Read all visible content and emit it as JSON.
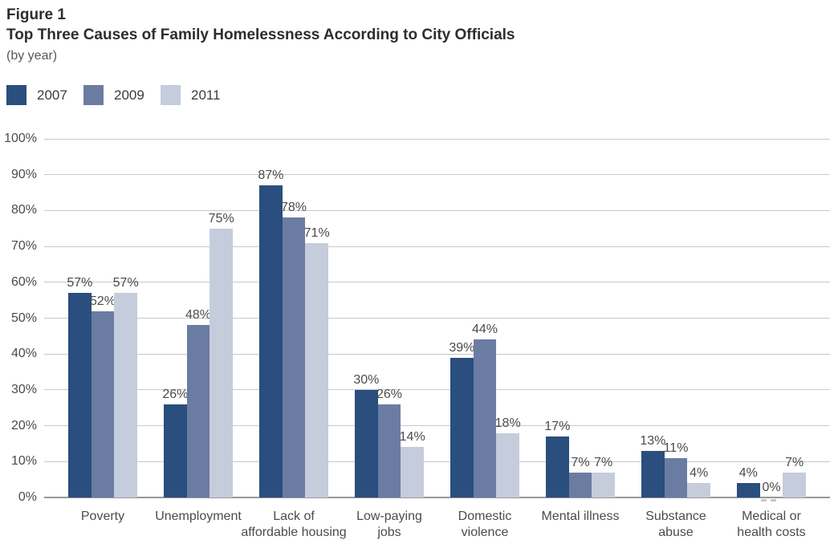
{
  "header": {
    "figure_label": "Figure 1",
    "title": "Top Three Causes of Family Homelessness According to City Officials",
    "subtitle": "(by year)"
  },
  "legend": {
    "items": [
      {
        "label": "2007",
        "color": "#2a4e7d"
      },
      {
        "label": "2009",
        "color": "#6b7ca3"
      },
      {
        "label": "2011",
        "color": "#c5ccdb"
      }
    ]
  },
  "chart_data": {
    "type": "bar",
    "title": "Top Three Causes of Family Homelessness According to City Officials (by year)",
    "categories": [
      "Poverty",
      "Unemployment",
      "Lack of affordable housing",
      "Low-paying jobs",
      "Domestic violence",
      "Mental illness",
      "Substance abuse",
      "Medical or health costs"
    ],
    "category_display": [
      "Poverty",
      "Unemployment",
      "Lack of\naffordable housing",
      "Low-paying\njobs",
      "Domestic\nviolence",
      "Mental illness",
      "Substance\nabuse",
      "Medical or\nhealth costs"
    ],
    "series": [
      {
        "name": "2007",
        "color": "#2a4e7d",
        "values": [
          57,
          26,
          87,
          30,
          39,
          17,
          13,
          4
        ]
      },
      {
        "name": "2009",
        "color": "#6b7ca3",
        "values": [
          52,
          48,
          78,
          26,
          44,
          7,
          11,
          0
        ]
      },
      {
        "name": "2011",
        "color": "#c5ccdb",
        "values": [
          57,
          75,
          71,
          14,
          18,
          7,
          4,
          7
        ]
      }
    ],
    "value_label_format": "{v}%",
    "xlabel": "",
    "ylabel": "",
    "ylim": [
      0,
      100
    ],
    "ytick_step": 10,
    "ytick_labels": [
      "0%",
      "10%",
      "20%",
      "30%",
      "40%",
      "50%",
      "60%",
      "70%",
      "80%",
      "90%",
      "100%"
    ],
    "grid": true,
    "legend_position": "top-left",
    "zero_value_marker": "dashed baseline segment under 0% label"
  }
}
